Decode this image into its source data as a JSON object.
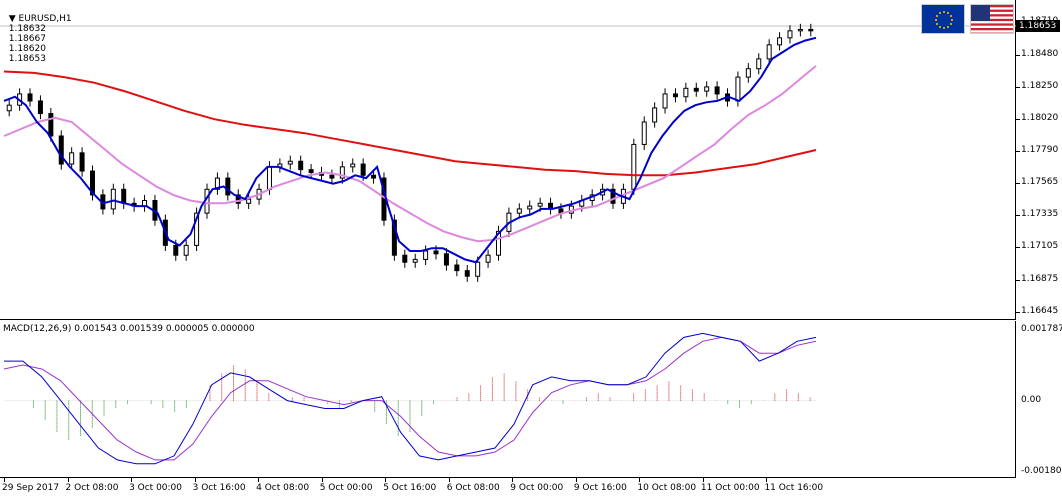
{
  "chart_header": {
    "symbol": "EURUSD,H1",
    "open": "1.18632",
    "high": "1.18667",
    "low": "1.18620",
    "close": "1.18653"
  },
  "macd_header": "MACD(12,26,9) 0.001543 0.001539 0.000005 0.000000",
  "current_price_tag": "1.18653",
  "price_axis": [
    "1.18710",
    "1.18480",
    "1.18250",
    "1.18020",
    "1.17790",
    "1.17565",
    "1.17335",
    "1.17105",
    "1.16875",
    "1.16645"
  ],
  "macd_axis": [
    "0.001787",
    "0.00",
    "-0.001807"
  ],
  "time_axis": [
    "29 Sep 2017",
    "2 Oct 08:00",
    "3 Oct 00:00",
    "3 Oct 16:00",
    "4 Oct 08:00",
    "5 Oct 00:00",
    "5 Oct 16:00",
    "6 Oct 08:00",
    "9 Oct 00:00",
    "9 Oct 16:00",
    "10 Oct 08:00",
    "11 Oct 00:00",
    "11 Oct 16:00"
  ],
  "flags": {
    "base": "euro-flag-icon",
    "quote": "us-flag-icon"
  },
  "colors": {
    "fast_ma": "#0000cc",
    "mid_ma": "#dd88dd",
    "slow_ma": "#e01010",
    "macd_pos": "#cc2222",
    "macd_neg": "#228822",
    "macd_line": "#0000cc",
    "signal_line": "#9933cc"
  },
  "chart_data": [
    {
      "type": "candlestick",
      "title": "EURUSD,H1",
      "ylim": [
        1.16645,
        1.1877
      ],
      "close_series": [
        1.1812,
        1.182,
        1.1815,
        1.1806,
        1.179,
        1.177,
        1.1778,
        1.1765,
        1.1748,
        1.1738,
        1.1752,
        1.1742,
        1.174,
        1.1744,
        1.173,
        1.1712,
        1.1705,
        1.1712,
        1.1735,
        1.1752,
        1.176,
        1.1748,
        1.1742,
        1.1745,
        1.1752,
        1.1768,
        1.177,
        1.1772,
        1.1766,
        1.1764,
        1.1762,
        1.176,
        1.1768,
        1.177,
        1.1762,
        1.176,
        1.173,
        1.1705,
        1.17,
        1.1702,
        1.1708,
        1.1706,
        1.1698,
        1.1694,
        1.169,
        1.17,
        1.1705,
        1.1722,
        1.1735,
        1.1738,
        1.174,
        1.1742,
        1.1738,
        1.1735,
        1.174,
        1.1744,
        1.1748,
        1.1752,
        1.1742,
        1.1752,
        1.1784,
        1.18,
        1.181,
        1.182,
        1.1818,
        1.1824,
        1.1822,
        1.1825,
        1.182,
        1.1815,
        1.1832,
        1.1838,
        1.1845,
        1.1855,
        1.186,
        1.1865,
        1.1866,
        1.1865
      ],
      "fast_ma": [
        1.1815,
        1.1818,
        1.1812,
        1.18,
        1.1792,
        1.1778,
        1.1768,
        1.176,
        1.175,
        1.1742,
        1.1744,
        1.1742,
        1.174,
        1.174,
        1.1735,
        1.1716,
        1.1712,
        1.172,
        1.174,
        1.1752,
        1.1754,
        1.1748,
        1.1745,
        1.176,
        1.1768,
        1.1768,
        1.1765,
        1.1762,
        1.176,
        1.1758,
        1.1756,
        1.1758,
        1.1762,
        1.176,
        1.1768,
        1.174,
        1.1715,
        1.1708,
        1.1708,
        1.171,
        1.171,
        1.1706,
        1.1702,
        1.17,
        1.171,
        1.172,
        1.1728,
        1.1732,
        1.1734,
        1.1738,
        1.1738,
        1.174,
        1.1742,
        1.1745,
        1.1748,
        1.1752,
        1.1748,
        1.1745,
        1.176,
        1.1778,
        1.179,
        1.18,
        1.1808,
        1.1812,
        1.1814,
        1.1815,
        1.1818,
        1.1815,
        1.1822,
        1.1832,
        1.1845,
        1.185,
        1.1855,
        1.1858,
        1.186
      ],
      "mid_ma": [
        1.179,
        1.1795,
        1.18,
        1.1803,
        1.18,
        1.179,
        1.178,
        1.177,
        1.1762,
        1.1754,
        1.1748,
        1.1744,
        1.1742,
        1.1742,
        1.1744,
        1.1748,
        1.1754,
        1.1758,
        1.1762,
        1.1764,
        1.1762,
        1.1758,
        1.175,
        1.1742,
        1.1735,
        1.1728,
        1.1722,
        1.1718,
        1.1715,
        1.1716,
        1.172,
        1.1725,
        1.173,
        1.1735,
        1.1738,
        1.174,
        1.1745,
        1.175,
        1.1755,
        1.176,
        1.1768,
        1.1776,
        1.1784,
        1.1795,
        1.1805,
        1.1812,
        1.182,
        1.183,
        1.184
      ],
      "slow_ma": [
        1.1836,
        1.1835,
        1.1832,
        1.1828,
        1.1822,
        1.1815,
        1.1808,
        1.1802,
        1.1798,
        1.1795,
        1.1792,
        1.1788,
        1.1784,
        1.178,
        1.1776,
        1.1772,
        1.177,
        1.1768,
        1.1766,
        1.1765,
        1.1763,
        1.1762,
        1.1762,
        1.1764,
        1.1767,
        1.177,
        1.1775,
        1.178
      ]
    },
    {
      "type": "bar+line",
      "title": "MACD(12,26,9)",
      "ylim": [
        -0.001807,
        0.001787
      ],
      "histogram": [
        0,
        0,
        -0.0002,
        -0.0005,
        -0.0008,
        -0.001,
        -0.0009,
        -0.0007,
        -0.0004,
        -0.0002,
        -0.0001,
        0,
        -0.0001,
        -0.0002,
        -0.0003,
        -0.0002,
        0,
        0.0004,
        0.0007,
        0.0009,
        0.0008,
        0.0005,
        0.0002,
        0,
        0.0001,
        0.0001,
        0,
        -0.0001,
        -0.0002,
        -0.0001,
        0,
        -0.0003,
        -0.0006,
        -0.0009,
        -0.0008,
        -0.0004,
        -0.0001,
        0,
        0.0001,
        0.0002,
        0.0004,
        0.0006,
        0.0007,
        0.0005,
        0.0003,
        0.0001,
        0.0,
        -0.0001,
        0,
        0.0001,
        0.0002,
        0.0001,
        0,
        0.0002,
        0.0003,
        0.0004,
        0.0005,
        0.0004,
        0.0003,
        0.0002,
        0,
        -0.0001,
        -0.0002,
        -0.0001,
        0,
        0.0002,
        0.0003,
        0.0002,
        0.0001
      ],
      "macd_line": [
        0.001,
        0.001,
        0.0006,
        0.0,
        -0.0006,
        -0.0012,
        -0.0015,
        -0.0016,
        -0.0016,
        -0.0014,
        -0.0006,
        0.0004,
        0.0007,
        0.0006,
        0.0003,
        0.0,
        -0.0001,
        -0.0002,
        -0.0002,
        0.0,
        0.0001,
        -0.0008,
        -0.0014,
        -0.0015,
        -0.0014,
        -0.0013,
        -0.0012,
        -0.0006,
        0.0004,
        0.0006,
        0.0005,
        0.0005,
        0.0004,
        0.0004,
        0.0006,
        0.0012,
        0.0016,
        0.0017,
        0.0016,
        0.0015,
        0.001,
        0.0012,
        0.0015,
        0.0016
      ],
      "signal_line": [
        0.0008,
        0.0009,
        0.0008,
        0.0005,
        0.0,
        -0.0005,
        -0.001,
        -0.0013,
        -0.0015,
        -0.0015,
        -0.0011,
        -0.0004,
        0.0002,
        0.0005,
        0.0005,
        0.0003,
        0.0001,
        0.0,
        -0.0001,
        0.0,
        0.0,
        -0.0004,
        -0.0009,
        -0.0013,
        -0.0014,
        -0.0014,
        -0.0013,
        -0.001,
        -0.0003,
        0.0002,
        0.0004,
        0.0005,
        0.0004,
        0.0004,
        0.0005,
        0.0008,
        0.0012,
        0.0015,
        0.0016,
        0.0015,
        0.0012,
        0.0012,
        0.0014,
        0.0015
      ]
    }
  ]
}
